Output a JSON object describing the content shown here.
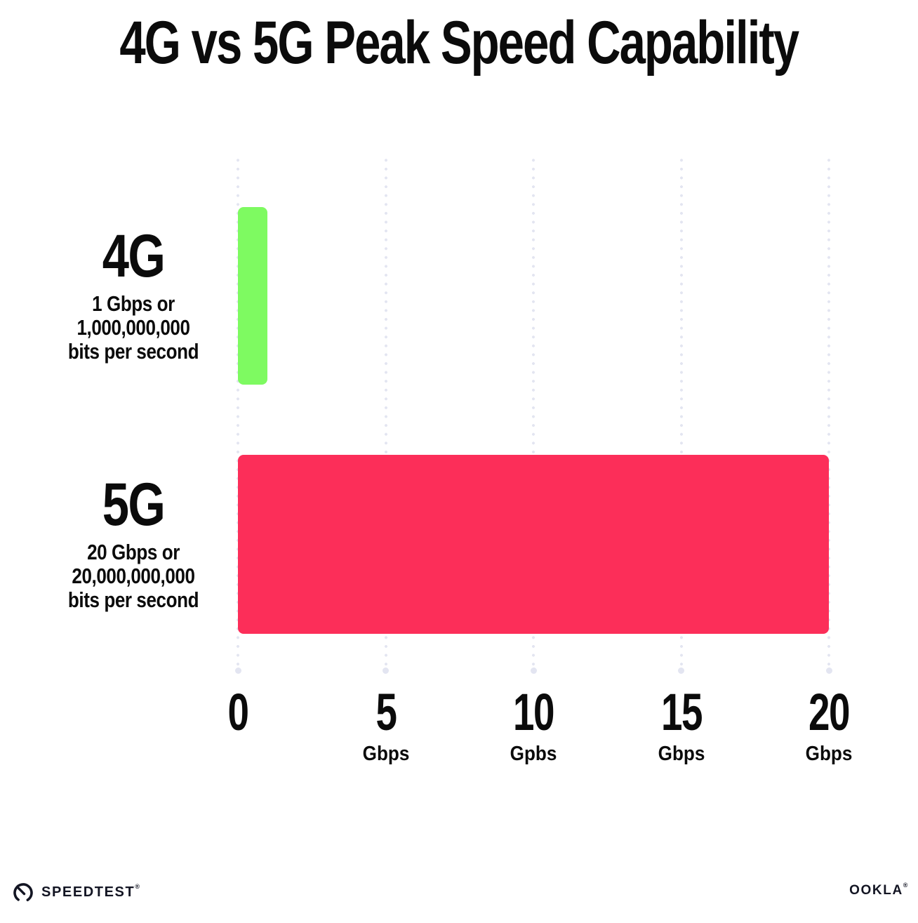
{
  "chart_data": {
    "type": "bar",
    "orientation": "horizontal",
    "title": "4G vs 5G Peak Speed Capability",
    "categories": [
      "4G",
      "5G"
    ],
    "values": [
      1,
      20
    ],
    "series": [
      {
        "name": "4G",
        "value_gbps": 1,
        "color": "#7EFA61",
        "sublabel_lines": [
          "1 Gbps or",
          "1,000,000,000",
          "bits per second"
        ]
      },
      {
        "name": "5G",
        "value_gbps": 20,
        "color": "#FC2E59",
        "sublabel_lines": [
          "20 Gbps or",
          "20,000,000,000",
          "bits per second"
        ]
      }
    ],
    "xlim": [
      0,
      20
    ],
    "x_ticks": [
      {
        "value": 0,
        "label": "0",
        "unit": ""
      },
      {
        "value": 5,
        "label": "5",
        "unit": "Gbps"
      },
      {
        "value": 10,
        "label": "10",
        "unit": "Gpbs"
      },
      {
        "value": 15,
        "label": "15",
        "unit": "Gbps"
      },
      {
        "value": 20,
        "label": "20",
        "unit": "Gbps"
      }
    ],
    "grid": {
      "style": "dotted",
      "orientation": "vertical",
      "color": "#E3E5F1"
    },
    "legend": "none",
    "text_color": "#0B0B0B",
    "background_color": "#FFFFFF"
  },
  "footer": {
    "speedtest": {
      "label": "SPEEDTEST",
      "mark": "®"
    },
    "ookla": {
      "label": "OOKLA",
      "mark": "®"
    }
  }
}
